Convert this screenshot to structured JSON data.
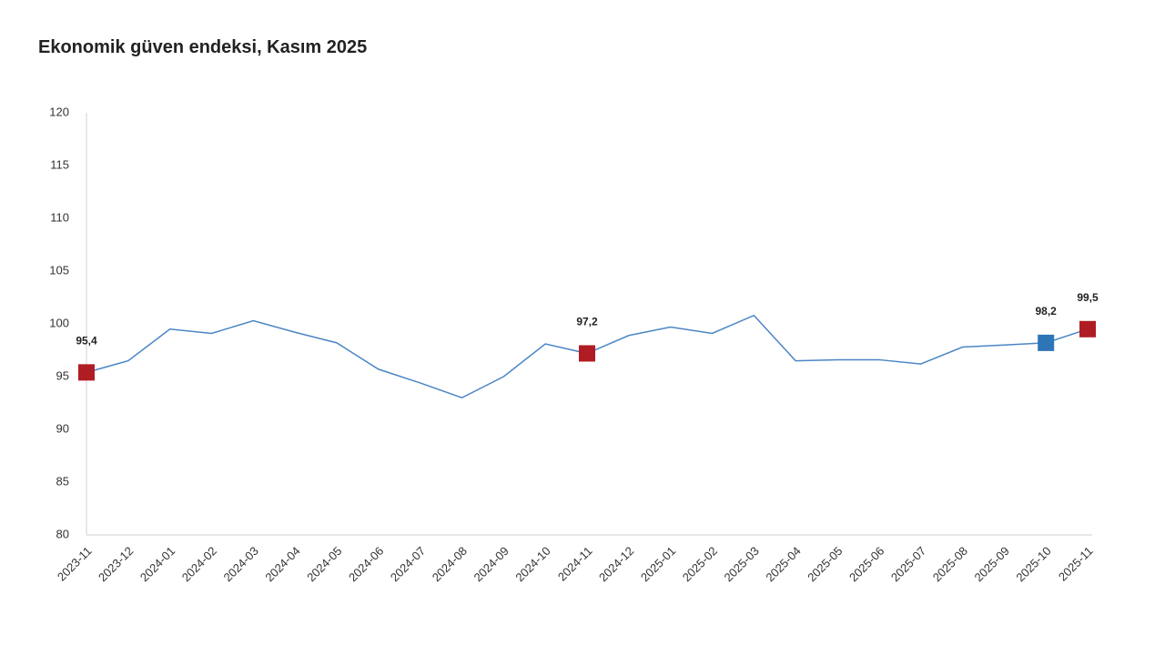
{
  "chart_data": {
    "type": "line",
    "title": "Ekonomik güven endeksi, Kasım 2025",
    "categories": [
      "2023-11",
      "2023-12",
      "2024-01",
      "2024-02",
      "2024-03",
      "2024-04",
      "2024-05",
      "2024-06",
      "2024-07",
      "2024-08",
      "2024-09",
      "2024-10",
      "2024-11",
      "2024-12",
      "2025-01",
      "2025-02",
      "2025-03",
      "2025-04",
      "2025-05",
      "2025-06",
      "2025-07",
      "2025-08",
      "2025-09",
      "2025-10",
      "2025-11"
    ],
    "values": [
      95.4,
      96.5,
      99.5,
      99.1,
      100.3,
      99.2,
      98.2,
      95.7,
      94.4,
      93.0,
      95.0,
      98.1,
      97.2,
      98.9,
      99.7,
      99.1,
      100.8,
      96.5,
      96.6,
      96.6,
      96.2,
      97.8,
      98.0,
      98.2,
      99.5
    ],
    "value_labels": [
      "95,4",
      null,
      null,
      null,
      null,
      null,
      null,
      null,
      null,
      null,
      null,
      null,
      "97,2",
      null,
      null,
      null,
      null,
      null,
      null,
      null,
      null,
      null,
      null,
      "98,2",
      "99,5"
    ],
    "marker_colors": [
      "#b01c24",
      null,
      null,
      null,
      null,
      null,
      null,
      null,
      null,
      null,
      null,
      null,
      "#b01c24",
      null,
      null,
      null,
      null,
      null,
      null,
      null,
      null,
      null,
      null,
      "#2e75b6",
      "#b01c24"
    ],
    "color": "#4a86c5",
    "ylim": [
      80,
      120
    ],
    "yticks": [
      80,
      85,
      90,
      95,
      100,
      105,
      110,
      115,
      120
    ],
    "grid": false
  }
}
